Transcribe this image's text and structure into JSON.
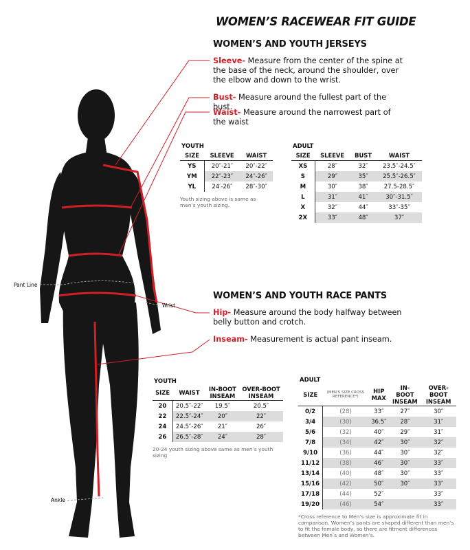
{
  "title": "WOMEN’S RACEWEAR FIT GUIDE",
  "jerseys": {
    "heading": "WOMEN’S AND YOUTH JERSEYS",
    "definitions": [
      {
        "term": "Sleeve-",
        "text": " Measure from the center of the spine at the base of the neck, around the shoulder, over the elbow and down to the wrist."
      },
      {
        "term": "Bust-",
        "text": " Measure around the fullest part of the bust."
      },
      {
        "term": "Waist-",
        "text": " Measure around the narrowest part of the waist"
      }
    ],
    "youth_table": {
      "label": "YOUTH",
      "header": [
        "SIZE",
        "SLEEVE",
        "WAIST"
      ],
      "rows": [
        [
          "YS",
          "20″-21″",
          "20″-22″"
        ],
        [
          "YM",
          "22″-23″",
          "24″-26″"
        ],
        [
          "YL",
          "24′-26″",
          "28″-30″"
        ]
      ],
      "note": "Youth sizing above is same as men’s youth sizing."
    },
    "adult_table": {
      "label": "ADULT",
      "header": [
        "SIZE",
        "SLEEVE",
        "BUST",
        "WAIST"
      ],
      "rows": [
        [
          "XS",
          "28″",
          "32″",
          "23.5″-24.5″"
        ],
        [
          "S",
          "29″",
          "35″",
          "25.5″-26.5″"
        ],
        [
          "M",
          "30″",
          "38″",
          "27.5-28.5″"
        ],
        [
          "L",
          "31″",
          "41″",
          "30″-31.5″"
        ],
        [
          "X",
          "32″",
          "44″",
          "33″-35″"
        ],
        [
          "2X",
          "33″",
          "48″",
          "37″"
        ]
      ]
    }
  },
  "figure_labels": {
    "pant_line": "Pant Line",
    "wrist": "Wrist",
    "ankle": "Ankle"
  },
  "pants": {
    "heading": "WOMEN’S AND YOUTH RACE PANTS",
    "definitions": [
      {
        "term": "Hip-",
        "text": " Measure around the body halfway between belly button and crotch."
      },
      {
        "term": "Inseam-",
        "text": " Measurement is actual pant inseam."
      }
    ],
    "youth_table": {
      "label": "YOUTH",
      "header": [
        "SIZE",
        "WAIST",
        "IN-BOOT\nINSEAM",
        "OVER-BOOT\nINSEAM"
      ],
      "rows": [
        [
          "20",
          "20.5″-22″",
          "19.5″",
          "20.5″"
        ],
        [
          "22",
          "22.5″-24″",
          "20″",
          "22″"
        ],
        [
          "24",
          "24.5″-26″",
          "21″",
          "26″"
        ],
        [
          "26",
          "26.5″-28″",
          "24″",
          "28″"
        ]
      ],
      "note": "20-24 youth sizing above same as men’s youth sizing"
    },
    "adult_table": {
      "label": "ADULT",
      "header": [
        "SIZE",
        "(MEN’S SIZE CROSS REFERENCE*)",
        "HIP\nMAX",
        "IN-BOOT\nINSEAM",
        "OVER-BOOT\nINSEAM"
      ],
      "rows": [
        [
          "0/2",
          "(28)",
          "33″",
          "27″",
          "30″"
        ],
        [
          "3/4",
          "(30)",
          "36.5″",
          "28″",
          "31″"
        ],
        [
          "5/6",
          "(32)",
          "40″",
          "29″",
          "31″"
        ],
        [
          "7/8",
          "(34)",
          "42″",
          "30″",
          "32″"
        ],
        [
          "9/10",
          "(36)",
          "44″",
          "30″",
          "32″"
        ],
        [
          "11/12",
          "(38)",
          "46″",
          "30″",
          "33″"
        ],
        [
          "13/14",
          "(40)",
          "48″",
          "30″",
          "33″"
        ],
        [
          "15/16",
          "(42)",
          "50″",
          "30″",
          "33″"
        ],
        [
          "17/18",
          "(44)",
          "52″",
          null,
          "33″"
        ],
        [
          "19/20",
          "(46)",
          "54″",
          null,
          "33″"
        ]
      ],
      "note": "*Cross reference to Men’s size is approximate fit in comparison. Women’s pants are shaped different than men’s to fit the female body, so there are fitment differences between Men’s and Women’s."
    }
  }
}
